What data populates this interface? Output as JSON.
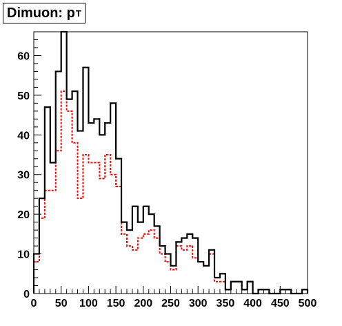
{
  "chart_data": {
    "type": "histogram",
    "title": "Dimuon: p",
    "title_subscript": "T",
    "xlim": [
      0,
      500
    ],
    "ylim": [
      0,
      66
    ],
    "bin_width": 10,
    "x_ticks": [
      "0",
      "50",
      "100",
      "150",
      "200",
      "250",
      "300",
      "350",
      "400",
      "450",
      "500"
    ],
    "y_ticks": [
      "0",
      "10",
      "20",
      "30",
      "40",
      "50",
      "60"
    ],
    "series": [
      {
        "style": "solid",
        "color": "#000000",
        "values": [
          10,
          24,
          47,
          33,
          56,
          66,
          49,
          51,
          41,
          57,
          43,
          44,
          40,
          43,
          48,
          34,
          18,
          16,
          22,
          18,
          22,
          20,
          17,
          12,
          10,
          7,
          13,
          14,
          15,
          14,
          8,
          7,
          11,
          4,
          5,
          1,
          3,
          3,
          1,
          3,
          0,
          1,
          1,
          0,
          0,
          1,
          1,
          0,
          0,
          1
        ]
      },
      {
        "style": "dashed",
        "color": "#ff0000",
        "values": [
          8,
          19,
          26,
          26,
          36,
          51,
          46,
          38,
          24,
          35,
          33,
          33,
          29,
          35,
          30,
          27,
          15,
          12,
          11,
          14,
          15,
          16,
          14,
          10,
          8,
          6,
          12,
          11,
          12,
          9,
          8,
          7,
          10,
          3,
          3,
          1,
          3,
          3,
          1,
          3,
          0,
          1,
          1,
          0,
          0,
          1,
          1,
          0,
          0,
          1
        ]
      }
    ]
  },
  "colors": {
    "frame": "#000000",
    "sim": "#ff0000",
    "data": "#000000"
  }
}
